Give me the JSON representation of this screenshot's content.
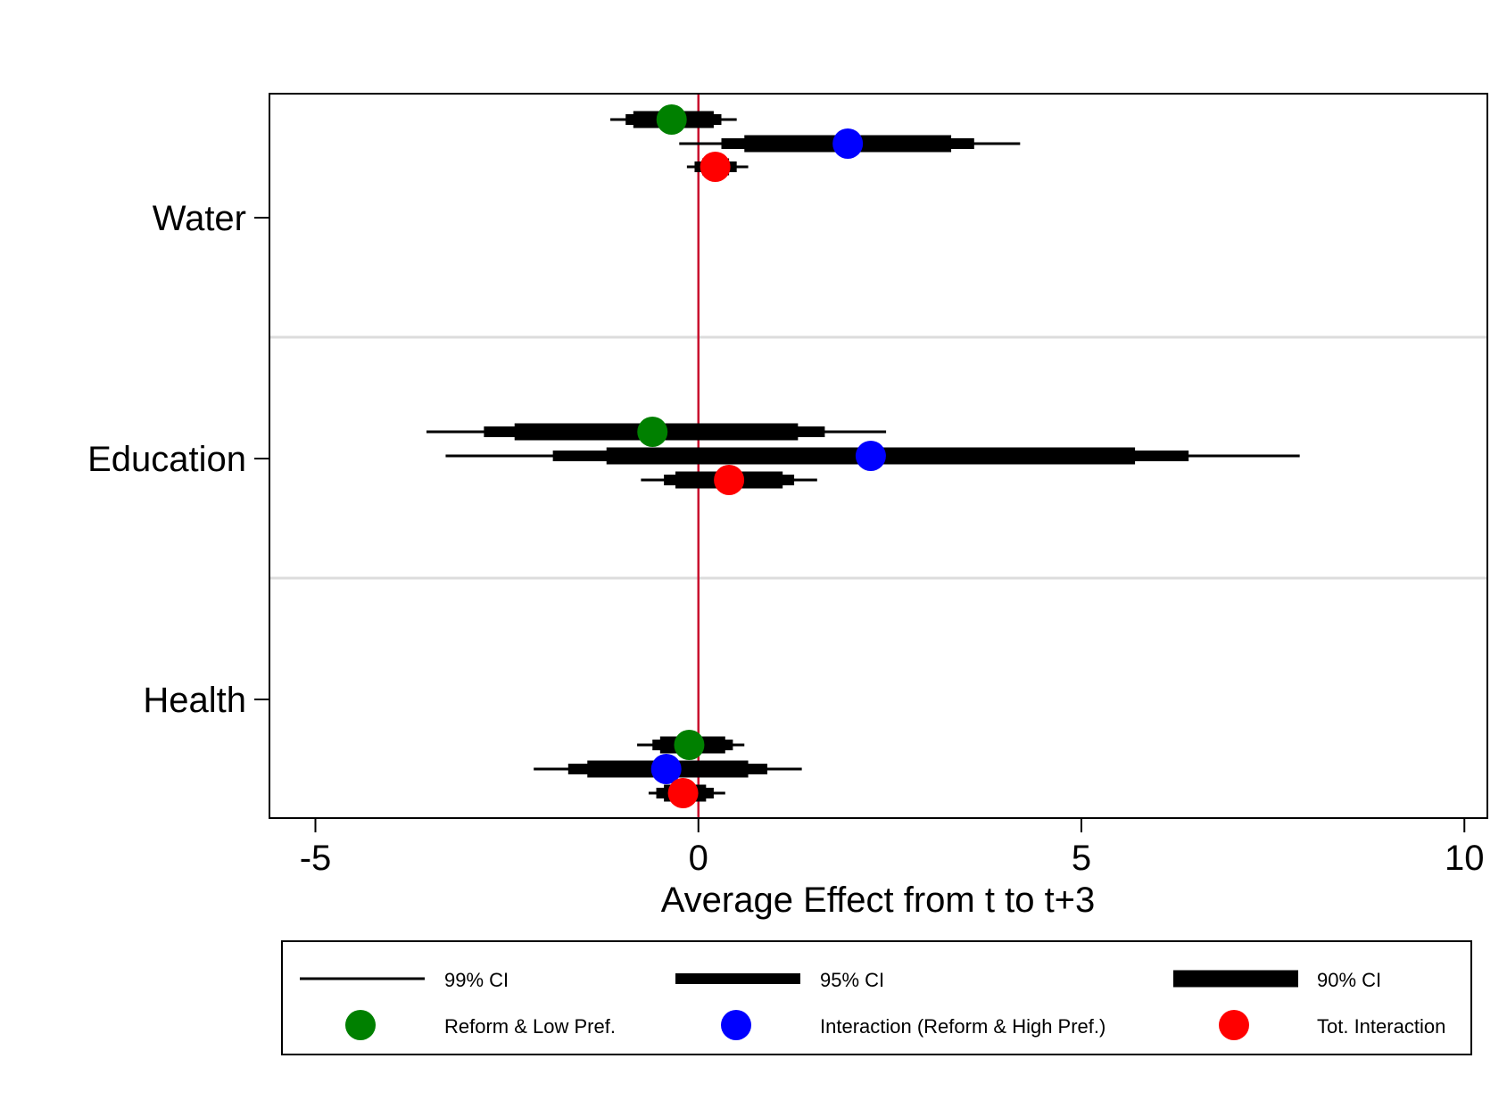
{
  "chart_data": {
    "type": "coefficient-plot",
    "xlabel": "Average Effect from t to t+3",
    "xlim": [
      -5.6,
      10.3
    ],
    "xticks": [
      -5,
      0,
      5,
      10
    ],
    "xtick_labels": [
      "-5",
      "0",
      "5",
      "10"
    ],
    "categories": [
      "Water",
      "Education",
      "Health"
    ],
    "reference_line": {
      "x": 0,
      "color": "#c8102e"
    },
    "grid": "horizontal separators between groups",
    "series": [
      {
        "name": "Reform & Low Pref.",
        "color": "#008000"
      },
      {
        "name": "Interaction (Reform & High Pref.)",
        "color": "#0000ff"
      },
      {
        "name": "Tot. Interaction",
        "color": "#ff0000"
      }
    ],
    "points": [
      {
        "category": "Water",
        "series": 0,
        "estimate": -0.35,
        "ci90": [
          -0.85,
          0.2
        ],
        "ci95": [
          -0.95,
          0.3
        ],
        "ci99": [
          -1.15,
          0.5
        ]
      },
      {
        "category": "Water",
        "series": 1,
        "estimate": 1.95,
        "ci90": [
          0.6,
          3.3
        ],
        "ci95": [
          0.3,
          3.6
        ],
        "ci99": [
          -0.25,
          4.2
        ]
      },
      {
        "category": "Water",
        "series": 2,
        "estimate": 0.22,
        "ci90": [
          0.05,
          0.4
        ],
        "ci95": [
          -0.05,
          0.5
        ],
        "ci99": [
          -0.15,
          0.65
        ]
      },
      {
        "category": "Education",
        "series": 0,
        "estimate": -0.6,
        "ci90": [
          -2.4,
          1.3
        ],
        "ci95": [
          -2.8,
          1.65
        ],
        "ci99": [
          -3.55,
          2.45
        ]
      },
      {
        "category": "Education",
        "series": 1,
        "estimate": 2.25,
        "ci90": [
          -1.2,
          5.7
        ],
        "ci95": [
          -1.9,
          6.4
        ],
        "ci99": [
          -3.3,
          7.85
        ]
      },
      {
        "category": "Education",
        "series": 2,
        "estimate": 0.4,
        "ci90": [
          -0.3,
          1.1
        ],
        "ci95": [
          -0.45,
          1.25
        ],
        "ci99": [
          -0.75,
          1.55
        ]
      },
      {
        "category": "Health",
        "series": 0,
        "estimate": -0.12,
        "ci90": [
          -0.5,
          0.35
        ],
        "ci95": [
          -0.6,
          0.45
        ],
        "ci99": [
          -0.8,
          0.6
        ]
      },
      {
        "category": "Health",
        "series": 1,
        "estimate": -0.42,
        "ci90": [
          -1.45,
          0.65
        ],
        "ci95": [
          -1.7,
          0.9
        ],
        "ci99": [
          -2.15,
          1.35
        ]
      },
      {
        "category": "Health",
        "series": 2,
        "estimate": -0.2,
        "ci90": [
          -0.45,
          0.1
        ],
        "ci95": [
          -0.55,
          0.2
        ],
        "ci99": [
          -0.65,
          0.35
        ]
      }
    ],
    "legend": {
      "position": "bottom",
      "ci_entries": [
        "99% CI",
        "95% CI",
        "90% CI"
      ]
    }
  }
}
